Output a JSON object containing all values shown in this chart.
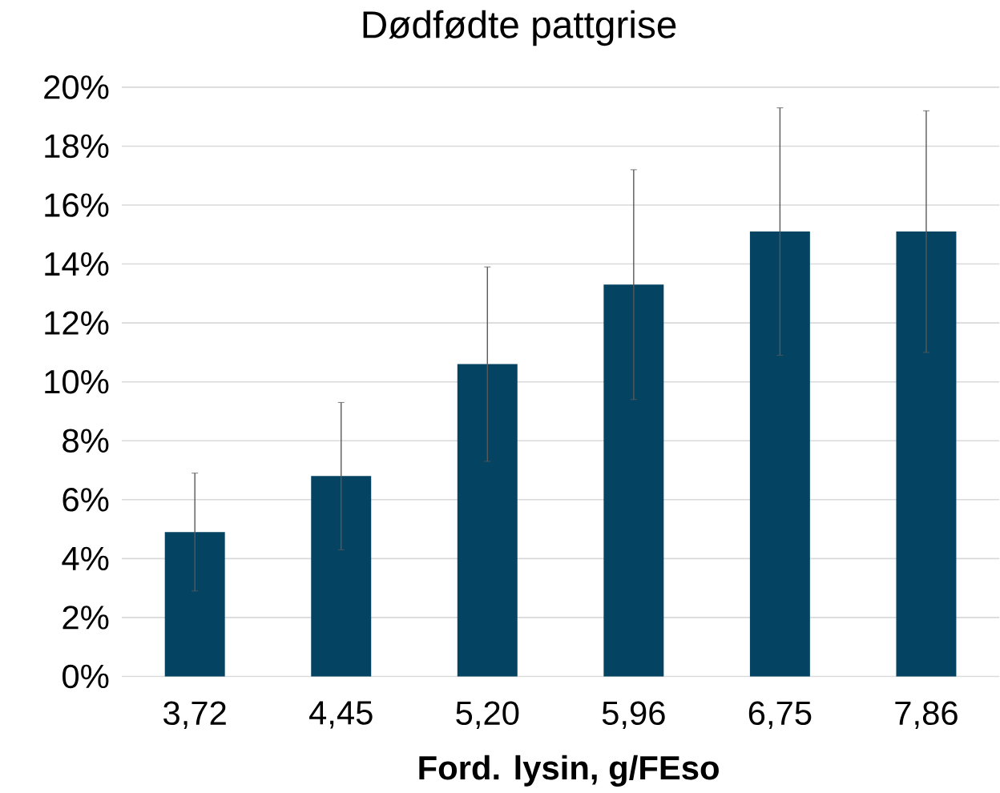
{
  "chart_data": {
    "type": "bar",
    "title": "Dødfødte pattgrise",
    "xlabel": "Ford. lysin, g/FEso",
    "categories": [
      "3,72",
      "4,45",
      "5,20",
      "5,96",
      "6,75",
      "7,86"
    ],
    "values": [
      4.9,
      6.8,
      10.6,
      13.3,
      15.1,
      15.1
    ],
    "errors": [
      2.0,
      2.5,
      3.3,
      3.9,
      4.2,
      4.1
    ],
    "color": "#044362",
    "ylim": [
      0,
      20
    ],
    "yticks": [
      {
        "value": 0,
        "label": "0%"
      },
      {
        "value": 2,
        "label": "2%"
      },
      {
        "value": 4,
        "label": "4%"
      },
      {
        "value": 6,
        "label": "6%"
      },
      {
        "value": 8,
        "label": "8%"
      },
      {
        "value": 10,
        "label": "10%"
      },
      {
        "value": 12,
        "label": "12%"
      },
      {
        "value": 14,
        "label": "14%"
      },
      {
        "value": 16,
        "label": "16%"
      },
      {
        "value": 18,
        "label": "18%"
      },
      {
        "value": 20,
        "label": "20%"
      }
    ],
    "grid": "y"
  }
}
